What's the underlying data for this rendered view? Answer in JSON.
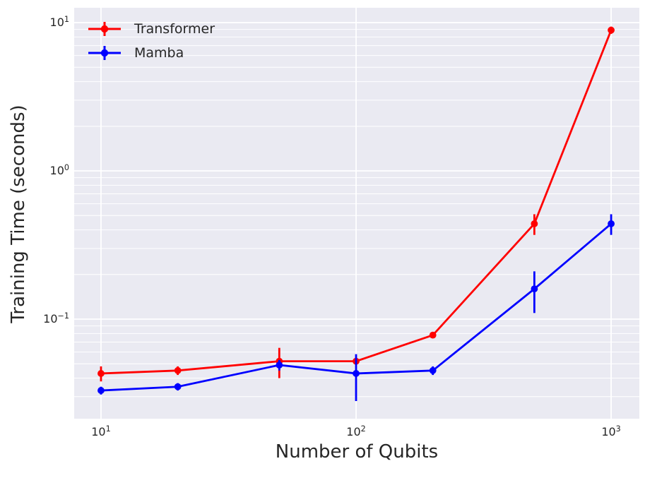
{
  "figure": {
    "background": "#ffffff",
    "plot_background": "#eaeaf2",
    "grid_color": "#ffffff",
    "text_color": "#262626"
  },
  "chart_data": {
    "type": "line",
    "x_scale": "log",
    "y_scale": "log",
    "xlabel": "Number of Qubits",
    "ylabel": "Training Time (seconds)",
    "xlim": [
      7.85,
      1290
    ],
    "ylim": [
      0.0213,
      12.6
    ],
    "grid": {
      "x_major": true,
      "x_minor": false,
      "y_major": true,
      "y_minor": true
    },
    "legend": {
      "position": "upper left",
      "frame": false
    },
    "x": [
      10,
      20,
      50,
      100,
      200,
      500,
      1000
    ],
    "series": [
      {
        "name": "Transformer",
        "color": "#ff0000",
        "marker": "circle-with-errorbar",
        "values": [
          0.043,
          0.045,
          0.052,
          0.052,
          0.078,
          0.44,
          8.9
        ],
        "yerr": [
          0.005,
          0.003,
          0.012,
          0.003,
          0.002,
          0.07,
          0.5
        ]
      },
      {
        "name": "Mamba",
        "color": "#0000ff",
        "marker": "circle-with-errorbar",
        "values": [
          0.033,
          0.035,
          0.049,
          0.043,
          0.045,
          0.16,
          0.44
        ],
        "yerr": [
          0.002,
          0.002,
          0.004,
          0.015,
          0.003,
          0.05,
          0.07
        ]
      }
    ],
    "x_ticks": [
      {
        "value": 10,
        "base": "10",
        "exp": "1"
      },
      {
        "value": 100,
        "base": "10",
        "exp": "2"
      },
      {
        "value": 1000,
        "base": "10",
        "exp": "3"
      }
    ],
    "y_ticks": [
      {
        "value": 10,
        "base": "10",
        "exp": "1"
      },
      {
        "value": 1,
        "base": "10",
        "exp": "0"
      },
      {
        "value": 0.1,
        "base": "10",
        "exp": "−1"
      }
    ]
  }
}
